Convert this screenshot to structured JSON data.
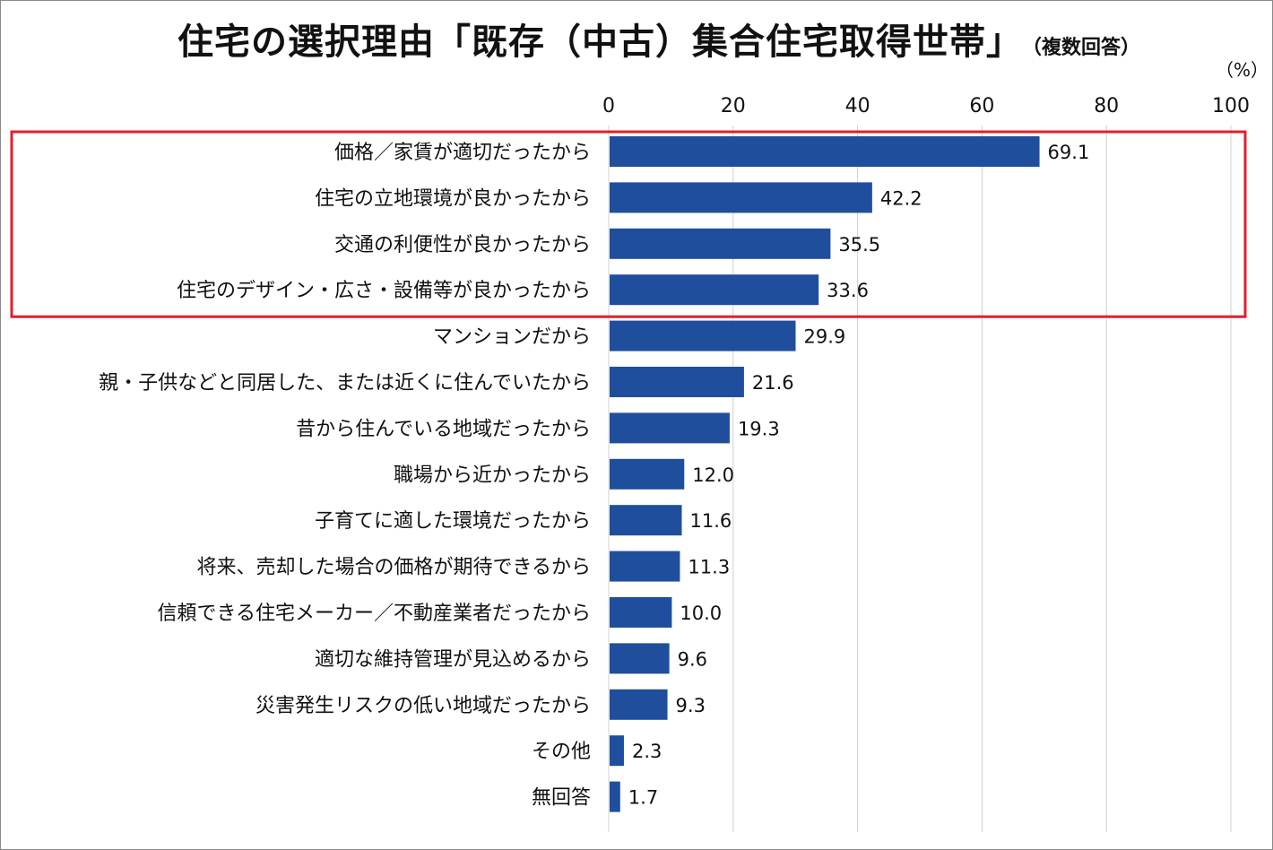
{
  "header": {
    "title": "住宅の選択理由「既存（中古）集合住宅取得世帯」",
    "subtitle": "（複数回答）",
    "unit": "（%）"
  },
  "colors": {
    "bar": "#1f4e9c",
    "highlight": "#e0202a",
    "grid": "#d0d0d0"
  },
  "chart_data": {
    "type": "bar",
    "orientation": "horizontal",
    "title": "住宅の選択理由「既存（中古）集合住宅取得世帯」",
    "xlim": [
      0,
      100
    ],
    "xticks": [
      0,
      20,
      40,
      60,
      80,
      100
    ],
    "grid": true,
    "categories": [
      "価格／家賃が適切だったから",
      "住宅の立地環境が良かったから",
      "交通の利便性が良かったから",
      "住宅のデザイン・広さ・設備等が良かったから",
      "マンションだから",
      "親・子供などと同居した、または近くに住んでいたから",
      "昔から住んでいる地域だったから",
      "職場から近かったから",
      "子育てに適した環境だったから",
      "将来、売却した場合の価格が期待できるから",
      "信頼できる住宅メーカー／不動産業者だったから",
      "適切な維持管理が見込めるから",
      "災害発生リスクの低い地域だったから",
      "その他",
      "無回答"
    ],
    "values": [
      69.1,
      42.2,
      35.5,
      33.6,
      29.9,
      21.6,
      19.3,
      12.0,
      11.6,
      11.3,
      10.0,
      9.6,
      9.3,
      2.3,
      1.7
    ],
    "value_labels": [
      "69.1",
      "42.2",
      "35.5",
      "33.6",
      "29.9",
      "21.6",
      "19.3",
      "12.0",
      "11.6",
      "11.3",
      "10.0",
      "9.6",
      "9.3",
      "2.3",
      "1.7"
    ],
    "highlighted_categories": [
      0,
      1,
      2,
      3
    ]
  }
}
